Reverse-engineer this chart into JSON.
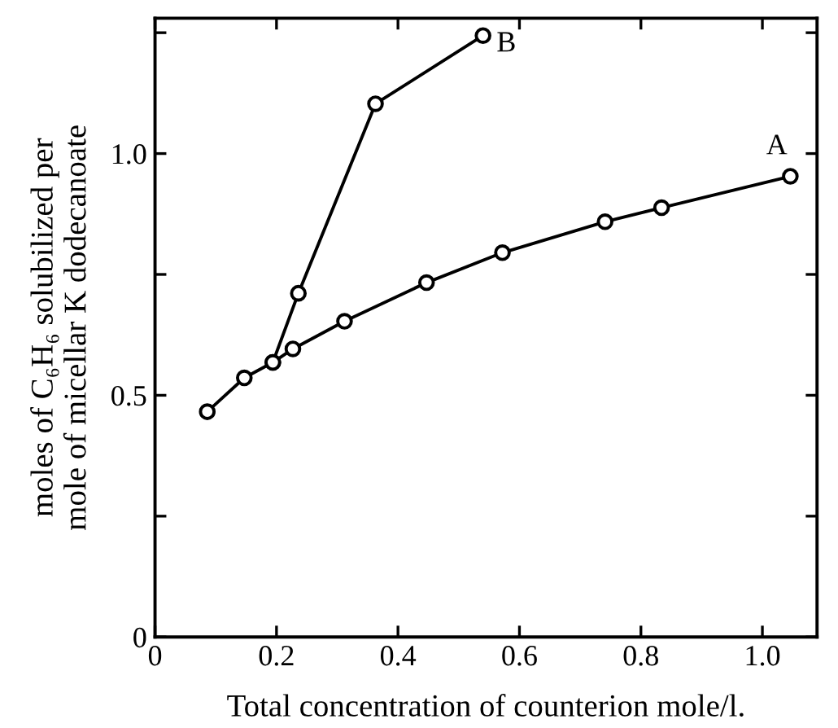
{
  "chart_data": {
    "type": "line",
    "xlabel": "Total concentration of counterion mole/l.",
    "ylabel": "moles of C₆H₆ solubilized per\nmole of micellar K dodecanoate",
    "xlim": [
      0,
      1.09
    ],
    "ylim": [
      0,
      1.28
    ],
    "xticks": [
      0,
      0.2,
      0.4,
      0.6,
      0.8,
      {
        "value": 1.0,
        "label": "1.0"
      }
    ],
    "yticks": [
      0,
      {
        "value": 0.25,
        "label": null
      },
      0.5,
      {
        "value": 0.75,
        "label": null
      },
      {
        "value": 1.0,
        "label": "1.0"
      },
      {
        "value": 1.25,
        "label": null
      }
    ],
    "marker": "circle",
    "line_style": "solid",
    "grid": false,
    "legend": "top right",
    "series": [
      {
        "name": "A",
        "color": "#000000",
        "x": [
          0.086,
          0.147,
          0.194,
          0.227,
          0.312,
          0.447,
          0.572,
          0.741,
          0.834,
          1.046
        ],
        "values": [
          0.466,
          0.536,
          0.568,
          0.596,
          0.653,
          0.733,
          0.795,
          0.859,
          0.888,
          0.953
        ]
      },
      {
        "name": "B",
        "color": "#000000",
        "x": [
          0.194,
          0.236,
          0.363,
          0.54
        ],
        "values": [
          0.568,
          0.711,
          1.103,
          1.244
        ]
      }
    ]
  }
}
